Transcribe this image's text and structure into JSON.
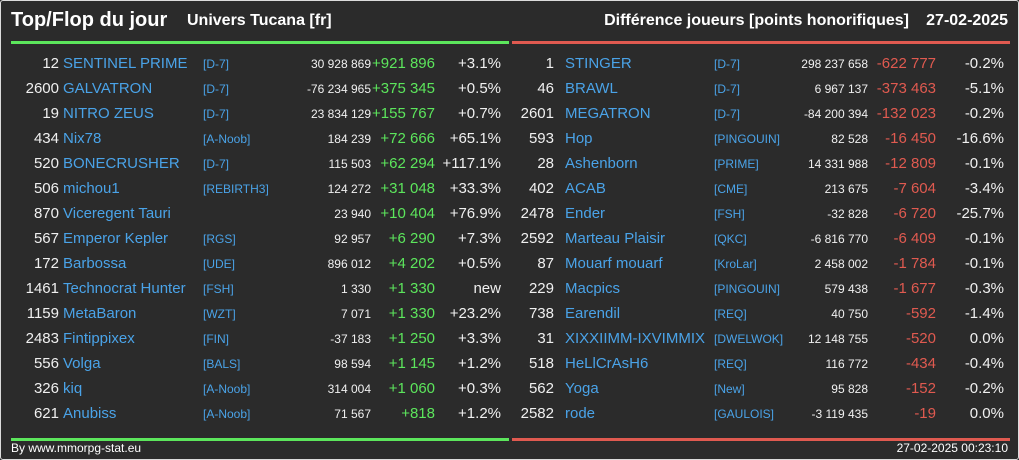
{
  "header": {
    "title": "Top/Flop du jour",
    "universe": "Univers Tucana [fr]",
    "metric": "Différence joueurs [points honorifiques]",
    "date": "27-02-2025"
  },
  "colors": {
    "top_accent": "#5ce65c",
    "flop_accent": "#e05a50",
    "link": "#4aa3e8",
    "background": "#2b2b2b"
  },
  "top": [
    {
      "rank": "12",
      "name": "SENTINEL PRIME",
      "ally": "[D-7]",
      "score": "30 928 869",
      "diff": "+921 896",
      "pct": "+3.1%"
    },
    {
      "rank": "2600",
      "name": "GALVATRON",
      "ally": "[D-7]",
      "score": "-76 234 965",
      "diff": "+375 345",
      "pct": "+0.5%"
    },
    {
      "rank": "19",
      "name": "NITRO ZEUS",
      "ally": "[D-7]",
      "score": "23 834 129",
      "diff": "+155 767",
      "pct": "+0.7%"
    },
    {
      "rank": "434",
      "name": "Nix78",
      "ally": "[A-Noob]",
      "score": "184 239",
      "diff": "+72 666",
      "pct": "+65.1%"
    },
    {
      "rank": "520",
      "name": "BONECRUSHER",
      "ally": "[D-7]",
      "score": "115 503",
      "diff": "+62 294",
      "pct": "+117.1%"
    },
    {
      "rank": "506",
      "name": "michou1",
      "ally": "[REBIRTH3]",
      "score": "124 272",
      "diff": "+31 048",
      "pct": "+33.3%"
    },
    {
      "rank": "870",
      "name": "Viceregent Tauri",
      "ally": "",
      "score": "23 940",
      "diff": "+10 404",
      "pct": "+76.9%"
    },
    {
      "rank": "567",
      "name": "Emperor Kepler",
      "ally": "[RGS]",
      "score": "92 957",
      "diff": "+6 290",
      "pct": "+7.3%"
    },
    {
      "rank": "172",
      "name": "Barbossa",
      "ally": "[UDE]",
      "score": "896 012",
      "diff": "+4 202",
      "pct": "+0.5%"
    },
    {
      "rank": "1461",
      "name": "Technocrat Hunter",
      "ally": "[FSH]",
      "score": "1 330",
      "diff": "+1 330",
      "pct": "new"
    },
    {
      "rank": "1159",
      "name": "MetaBaron",
      "ally": "[WZT]",
      "score": "7 071",
      "diff": "+1 330",
      "pct": "+23.2%"
    },
    {
      "rank": "2483",
      "name": "Fintippixex",
      "ally": "[FIN]",
      "score": "-37 183",
      "diff": "+1 250",
      "pct": "+3.3%"
    },
    {
      "rank": "556",
      "name": "Volga",
      "ally": "[BALS]",
      "score": "98 594",
      "diff": "+1 145",
      "pct": "+1.2%"
    },
    {
      "rank": "326",
      "name": "kiq",
      "ally": "[A-Noob]",
      "score": "314 004",
      "diff": "+1 060",
      "pct": "+0.3%"
    },
    {
      "rank": "621",
      "name": "Anubiss",
      "ally": "[A-Noob]",
      "score": "71 567",
      "diff": "+818",
      "pct": "+1.2%"
    }
  ],
  "flop": [
    {
      "rank": "1",
      "name": "STINGER",
      "ally": "[D-7]",
      "score": "298 237 658",
      "diff": "-622 777",
      "pct": "-0.2%"
    },
    {
      "rank": "46",
      "name": "BRAWL",
      "ally": "[D-7]",
      "score": "6 967 137",
      "diff": "-373 463",
      "pct": "-5.1%"
    },
    {
      "rank": "2601",
      "name": "MEGATRON",
      "ally": "[D-7]",
      "score": "-84 200 394",
      "diff": "-132 023",
      "pct": "-0.2%"
    },
    {
      "rank": "593",
      "name": "Hop",
      "ally": "[PINGOUIN]",
      "score": "82 528",
      "diff": "-16 450",
      "pct": "-16.6%"
    },
    {
      "rank": "28",
      "name": "Ashenborn",
      "ally": "[PRIME]",
      "score": "14 331 988",
      "diff": "-12 809",
      "pct": "-0.1%"
    },
    {
      "rank": "402",
      "name": "ACAB",
      "ally": "[CME]",
      "score": "213 675",
      "diff": "-7 604",
      "pct": "-3.4%"
    },
    {
      "rank": "2478",
      "name": "Ender",
      "ally": "[FSH]",
      "score": "-32 828",
      "diff": "-6 720",
      "pct": "-25.7%"
    },
    {
      "rank": "2592",
      "name": "Marteau Plaisir",
      "ally": "[QKC]",
      "score": "-6 816 770",
      "diff": "-6 409",
      "pct": "-0.1%"
    },
    {
      "rank": "87",
      "name": "Mouarf mouarf",
      "ally": "[KroLar]",
      "score": "2 458 002",
      "diff": "-1 784",
      "pct": "-0.1%"
    },
    {
      "rank": "229",
      "name": "Macpics",
      "ally": "[PINGOUIN]",
      "score": "579 438",
      "diff": "-1 677",
      "pct": "-0.3%"
    },
    {
      "rank": "738",
      "name": "Earendil",
      "ally": "[REQ]",
      "score": "40 750",
      "diff": "-592",
      "pct": "-1.4%"
    },
    {
      "rank": "31",
      "name": "XIXXIIMM-IXVIMMIX",
      "ally": "[DWELWOK]",
      "score": "12 148 755",
      "diff": "-520",
      "pct": "0.0%"
    },
    {
      "rank": "518",
      "name": "HeLlCrAsH6",
      "ally": "[REQ]",
      "score": "116 772",
      "diff": "-434",
      "pct": "-0.4%"
    },
    {
      "rank": "562",
      "name": "Yoga",
      "ally": "[New]",
      "score": "95 828",
      "diff": "-152",
      "pct": "-0.2%"
    },
    {
      "rank": "2582",
      "name": "rode",
      "ally": "[GAULOIS]",
      "score": "-3 119 435",
      "diff": "-19",
      "pct": "0.0%"
    }
  ],
  "footer": {
    "source": "By www.mmorpg-stat.eu",
    "timestamp": "27-02-2025 00:23:10"
  }
}
